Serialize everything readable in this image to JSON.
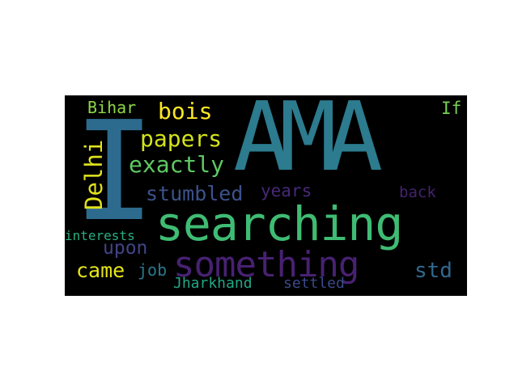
{
  "word_cloud": {
    "background": "#000000",
    "words": [
      {
        "key": "AMA",
        "text": "AMA",
        "color": "#2c7b8e"
      },
      {
        "key": "I",
        "text": "I",
        "color": "#2d6b8e"
      },
      {
        "key": "searching",
        "text": "searching",
        "color": "#3fbc73"
      },
      {
        "key": "something",
        "text": "something",
        "color": "#482172"
      },
      {
        "key": "Delhi",
        "text": "Delhi",
        "color": "#e1e31d"
      },
      {
        "key": "papers",
        "text": "papers",
        "color": "#d2e21b"
      },
      {
        "key": "exactly",
        "text": "exactly",
        "color": "#5ec962"
      },
      {
        "key": "stumbled",
        "text": "stumbled",
        "color": "#3b528b"
      },
      {
        "key": "bois",
        "text": "bois",
        "color": "#fde725"
      },
      {
        "key": "Bihar",
        "text": "Bihar",
        "color": "#8fd744"
      },
      {
        "key": "If",
        "text": "If",
        "color": "#75d054"
      },
      {
        "key": "upon",
        "text": "upon",
        "color": "#414487"
      },
      {
        "key": "years",
        "text": "years",
        "color": "#482878"
      },
      {
        "key": "back",
        "text": "back",
        "color": "#44226e"
      },
      {
        "key": "came",
        "text": "came",
        "color": "#e5e419"
      },
      {
        "key": "job",
        "text": "job",
        "color": "#2a788e"
      },
      {
        "key": "std",
        "text": "std",
        "color": "#31688e"
      },
      {
        "key": "interests",
        "text": "interests",
        "color": "#29af7f"
      },
      {
        "key": "Jharkhand",
        "text": "Jharkhand",
        "color": "#22a884"
      },
      {
        "key": "settled",
        "text": "settled",
        "color": "#3a4a8a"
      }
    ]
  }
}
